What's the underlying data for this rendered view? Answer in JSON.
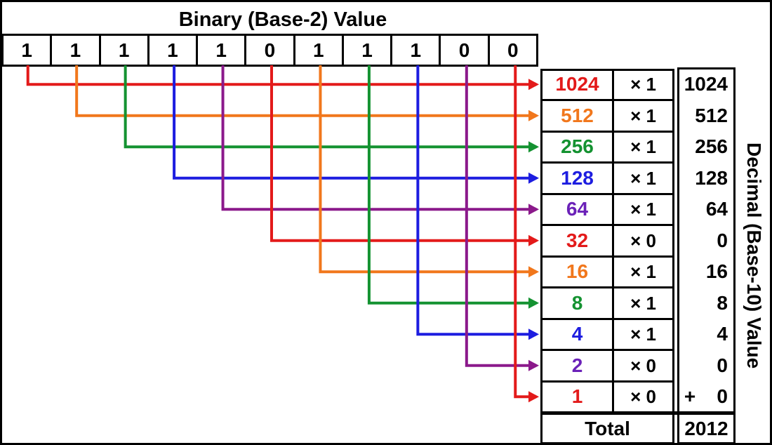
{
  "title": "Binary (Base-2) Value",
  "side_label": "Decimal (Base-10) Value",
  "binary": {
    "bits": [
      "1",
      "1",
      "1",
      "1",
      "1",
      "0",
      "1",
      "1",
      "1",
      "0",
      "0"
    ]
  },
  "colors": {
    "background": "#FFFFFF",
    "border": "#000000",
    "text": {
      "red": "#E31A1A",
      "orange": "#F1771C",
      "green": "#149231",
      "blue": "#1D1DE0",
      "violet": "#6B21B8",
      "black": "#000000"
    },
    "line": {
      "red": "#E31A1A",
      "orange": "#F1771C",
      "green": "#149231",
      "blue": "#1D1DE0",
      "purple": "#8B198B"
    }
  },
  "arrow_color_cycle": [
    "red",
    "orange",
    "green",
    "blue",
    "purple"
  ],
  "table": {
    "rows": [
      {
        "place_value": "1024",
        "color": "red",
        "multiplier": "× 1",
        "result": "1024",
        "plus": false
      },
      {
        "place_value": "512",
        "color": "orange",
        "multiplier": "× 1",
        "result": "512",
        "plus": false
      },
      {
        "place_value": "256",
        "color": "green",
        "multiplier": "× 1",
        "result": "256",
        "plus": false
      },
      {
        "place_value": "128",
        "color": "blue",
        "multiplier": "× 1",
        "result": "128",
        "plus": false
      },
      {
        "place_value": "64",
        "color": "violet",
        "multiplier": "× 1",
        "result": "64",
        "plus": false
      },
      {
        "place_value": "32",
        "color": "red",
        "multiplier": "× 0",
        "result": "0",
        "plus": false
      },
      {
        "place_value": "16",
        "color": "orange",
        "multiplier": "× 1",
        "result": "16",
        "plus": false
      },
      {
        "place_value": "8",
        "color": "green",
        "multiplier": "× 1",
        "result": "8",
        "plus": false
      },
      {
        "place_value": "4",
        "color": "blue",
        "multiplier": "× 1",
        "result": "4",
        "plus": false
      },
      {
        "place_value": "2",
        "color": "violet",
        "multiplier": "× 0",
        "result": "0",
        "plus": false
      },
      {
        "place_value": "1",
        "color": "red",
        "multiplier": "× 0",
        "result": "0",
        "plus": true
      }
    ],
    "plus_sign": "+",
    "total_label": "Total",
    "total_value": "2012"
  }
}
